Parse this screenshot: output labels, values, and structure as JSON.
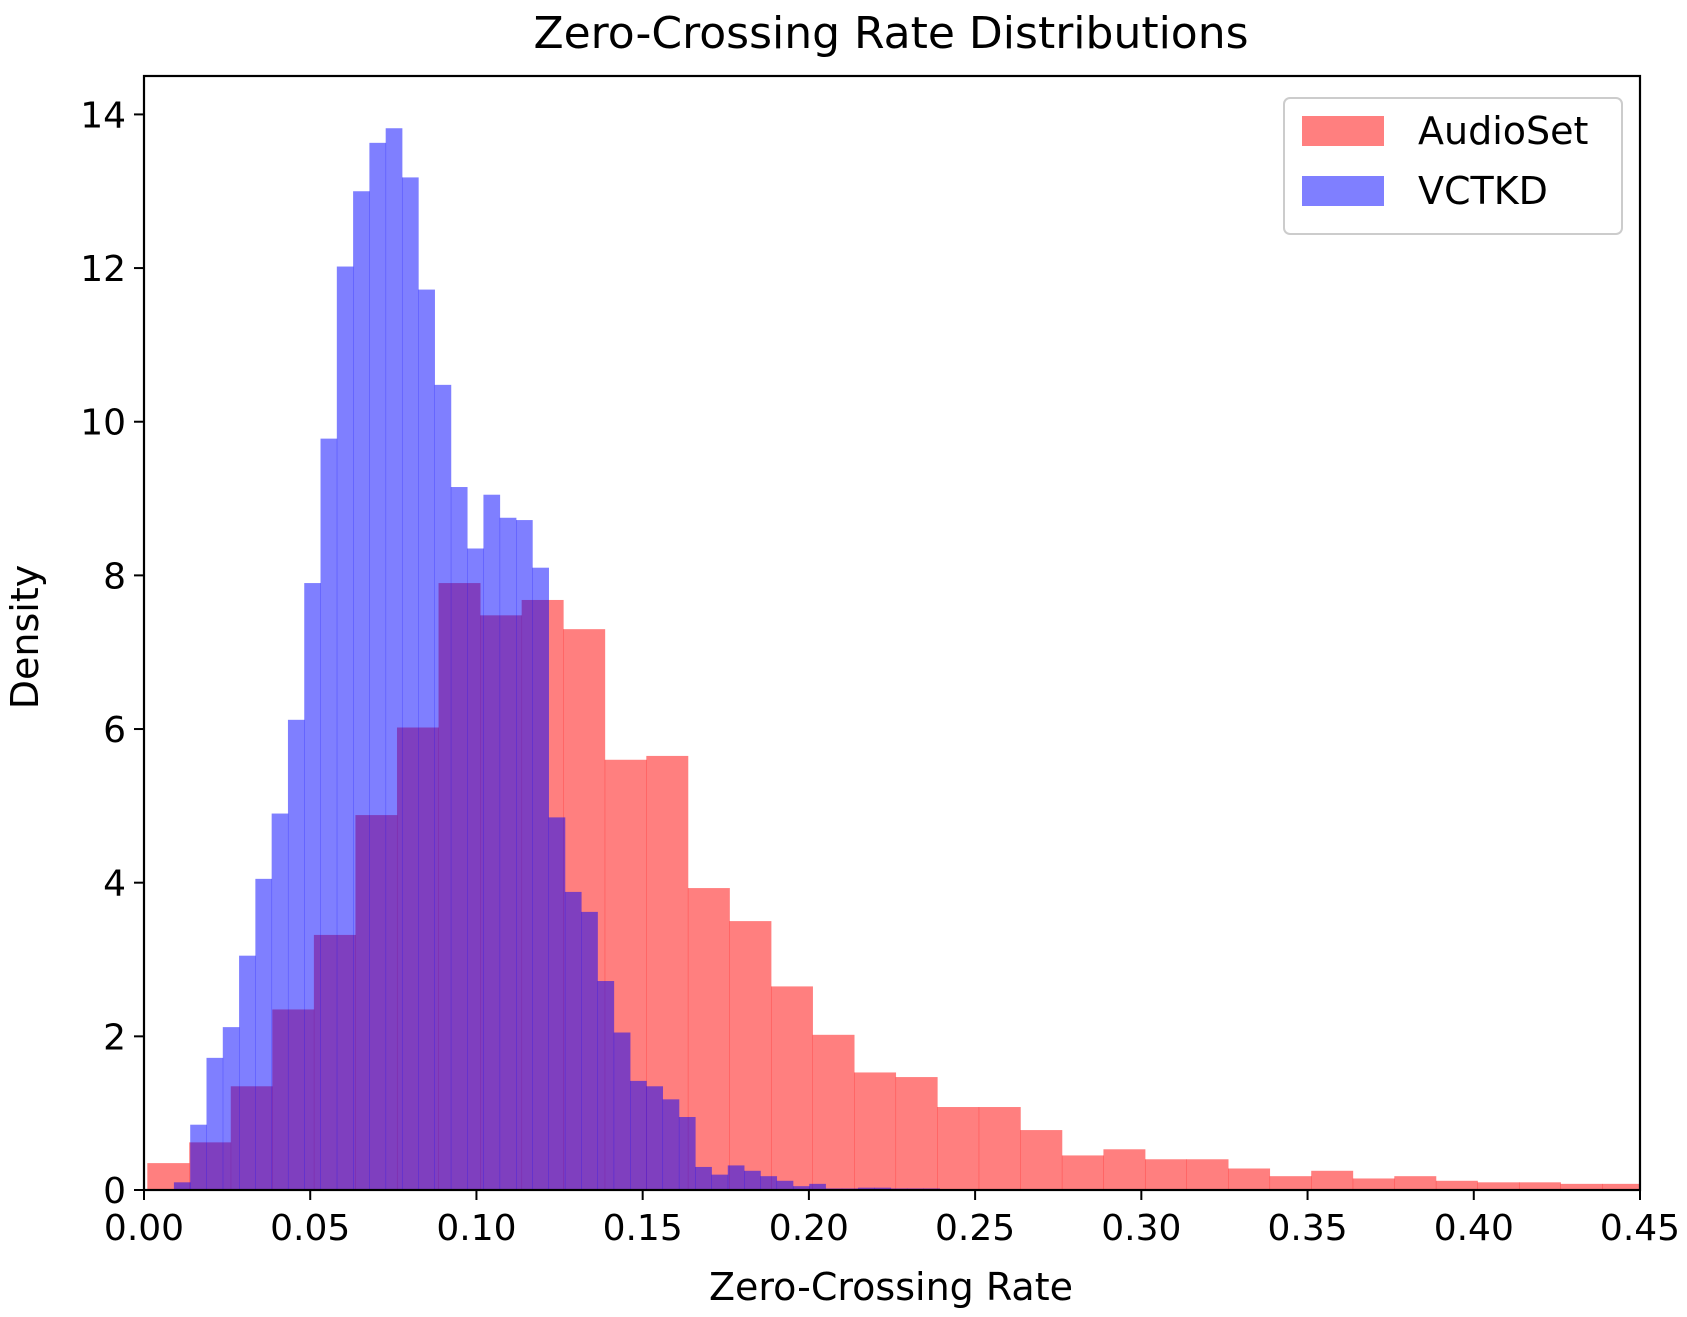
{
  "chart_data": {
    "type": "histogram",
    "title": "Zero-Crossing Rate Distributions",
    "xlabel": "Zero-Crossing Rate",
    "ylabel": "Density",
    "xlim": [
      0.0,
      0.45
    ],
    "ylim": [
      0,
      14.5
    ],
    "xticks": [
      0.0,
      0.05,
      0.1,
      0.15,
      0.2,
      0.25,
      0.3,
      0.35,
      0.4,
      0.45
    ],
    "xtick_labels": [
      "0.00",
      "0.05",
      "0.10",
      "0.15",
      "0.20",
      "0.25",
      "0.30",
      "0.35",
      "0.40",
      "0.45"
    ],
    "yticks": [
      0,
      2,
      4,
      6,
      8,
      10,
      12,
      14
    ],
    "ytick_labels": [
      "0",
      "2",
      "4",
      "6",
      "8",
      "10",
      "12",
      "14"
    ],
    "legend_position": "top-right",
    "grid": false,
    "series": [
      {
        "name": "AudioSet",
        "color": "#ff0000",
        "alpha": 0.5,
        "bin_edges": [
          0.001,
          0.0136,
          0.0261,
          0.0386,
          0.0511,
          0.0636,
          0.0761,
          0.0886,
          0.1011,
          0.1136,
          0.1261,
          0.1386,
          0.1511,
          0.1636,
          0.1761,
          0.1886,
          0.2011,
          0.2136,
          0.2261,
          0.2386,
          0.2511,
          0.2636,
          0.2761,
          0.2886,
          0.3011,
          0.3136,
          0.3261,
          0.3386,
          0.3511,
          0.3636,
          0.3761,
          0.3886,
          0.4011,
          0.4136,
          0.4261,
          0.4386,
          0.45
        ],
        "values": [
          0.35,
          0.62,
          1.35,
          2.35,
          3.32,
          4.88,
          6.02,
          7.9,
          7.48,
          7.68,
          7.3,
          5.6,
          5.65,
          3.93,
          3.5,
          2.65,
          2.02,
          1.53,
          1.47,
          1.08,
          1.08,
          0.78,
          0.45,
          0.53,
          0.4,
          0.4,
          0.28,
          0.18,
          0.25,
          0.15,
          0.18,
          0.12,
          0.1,
          0.1,
          0.08,
          0.08
        ]
      },
      {
        "name": "VCTKD",
        "color": "#0000ff",
        "alpha": 0.5,
        "bin_edges": [
          0.009,
          0.0139,
          0.0188,
          0.0237,
          0.0286,
          0.0335,
          0.0384,
          0.0433,
          0.0482,
          0.0531,
          0.058,
          0.0629,
          0.0678,
          0.0727,
          0.0776,
          0.0825,
          0.0874,
          0.0923,
          0.0972,
          0.1021,
          0.107,
          0.1119,
          0.1168,
          0.1217,
          0.1266,
          0.1315,
          0.1364,
          0.1413,
          0.1462,
          0.1511,
          0.156,
          0.1609,
          0.1658,
          0.1707,
          0.1756,
          0.1805,
          0.1854,
          0.1903,
          0.1952,
          0.2001,
          0.205,
          0.2099,
          0.2148,
          0.2197,
          0.2246,
          0.2295,
          0.2344,
          0.2393
        ],
        "values": [
          0.1,
          0.85,
          1.72,
          2.12,
          3.05,
          4.05,
          4.9,
          6.12,
          7.9,
          9.78,
          12.02,
          13.0,
          13.63,
          13.82,
          13.18,
          11.72,
          10.48,
          9.15,
          8.35,
          9.05,
          8.75,
          8.72,
          8.1,
          4.85,
          3.88,
          3.62,
          2.72,
          2.05,
          1.42,
          1.35,
          1.18,
          0.95,
          0.3,
          0.2,
          0.32,
          0.25,
          0.18,
          0.12,
          0.05,
          0.08,
          0.02,
          0.02,
          0.03,
          0.03,
          0.02,
          0.02,
          0.02
        ]
      }
    ]
  }
}
